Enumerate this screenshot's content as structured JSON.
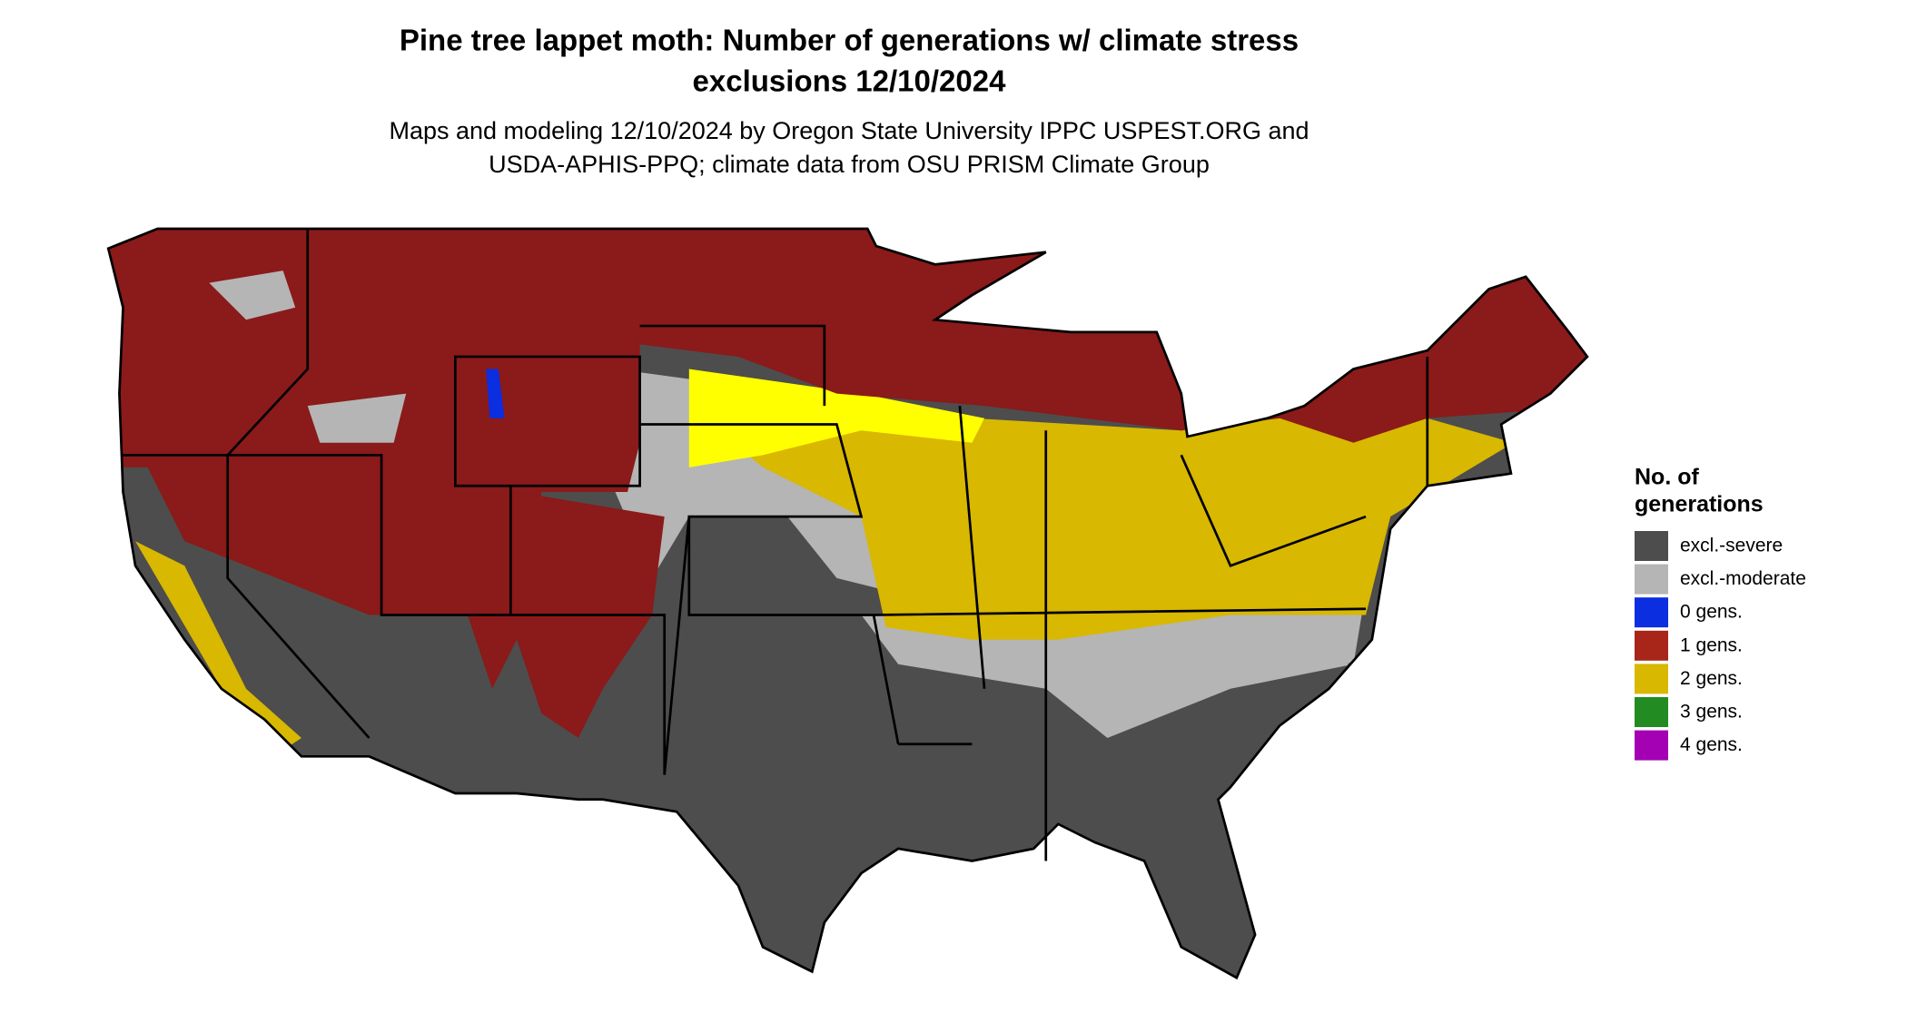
{
  "header": {
    "title_lines": [
      "Pine tree lappet moth: Number of generations w/ climate stress",
      "exclusions 12/10/2024"
    ],
    "subtitle_lines": [
      "Maps and modeling 12/10/2024 by Oregon State University IPPC USPEST.ORG and",
      "USDA-APHIS-PPQ; climate data from OSU PRISM Climate Group"
    ]
  },
  "legend": {
    "title_lines": [
      "No. of",
      "generations"
    ],
    "items": [
      {
        "label": "excl.-severe",
        "color": "#4d4d4d"
      },
      {
        "label": "excl.-moderate",
        "color": "#b5b5b5"
      },
      {
        "label": "0 gens.",
        "color": "#0a2ee0"
      },
      {
        "label": "1 gens.",
        "color": "#a8251a"
      },
      {
        "label": "2 gens.",
        "color": "#d8b800"
      },
      {
        "label": "3 gens.",
        "color": "#228b22"
      },
      {
        "label": "4 gens.",
        "color": "#a400b4"
      }
    ]
  }
}
